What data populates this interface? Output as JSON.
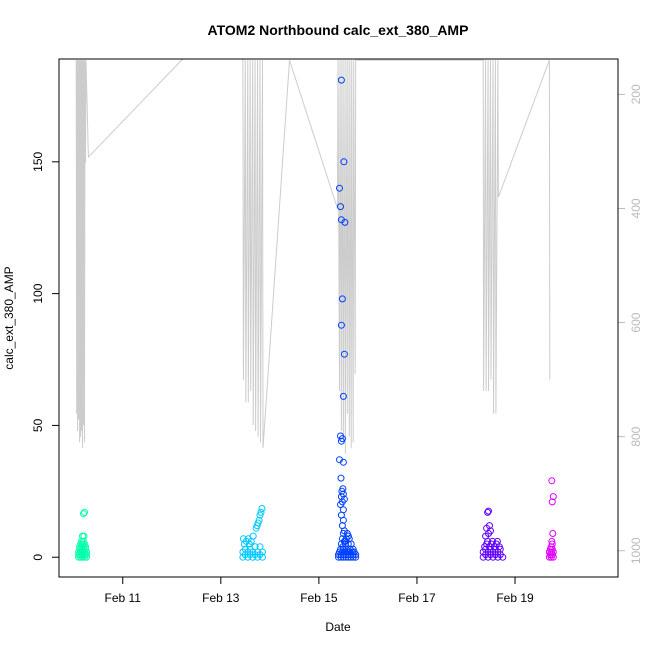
{
  "chart_data": {
    "type": "scatter",
    "title": "ATOM2 Northbound calc_ext_380_AMP",
    "xlabel": "Date",
    "ylabel": "calc_ext_380_AMP",
    "x_tick_labels": [
      "Feb 11",
      "Feb 13",
      "Feb 15",
      "Feb 17",
      "Feb 19"
    ],
    "x_tick_days": [
      11,
      13,
      15,
      17,
      19
    ],
    "xlim_days": [
      9.7,
      21.1
    ],
    "ylim": [
      -7.5,
      189
    ],
    "y_ticks": [
      0,
      50,
      100,
      150
    ],
    "y2_ticks": [
      200,
      400,
      600,
      800,
      1000
    ],
    "y2_lim": [
      1046,
      138
    ],
    "y2_reversed": true,
    "grid": false,
    "point_style": "open-circle",
    "scatter_series": [
      {
        "color": "#00ffaa",
        "x_days": [
          10.1,
          10.14,
          10.18,
          10.22,
          10.26,
          10.1,
          10.14,
          10.18,
          10.22,
          10.26,
          10.1,
          10.14,
          10.18,
          10.22,
          10.26,
          10.12,
          10.16,
          10.2,
          10.24,
          10.12,
          10.16,
          10.2,
          10.24,
          10.14,
          10.18,
          10.22,
          10.16,
          10.2,
          10.18,
          10.21,
          10.2,
          10.22
        ],
        "y": [
          0,
          0,
          0,
          0,
          0,
          1,
          1,
          1,
          1,
          1,
          2,
          2,
          2,
          2,
          2,
          3,
          3,
          3,
          3,
          4,
          4,
          4,
          4,
          5,
          5,
          5,
          6,
          6,
          8,
          8,
          16.5,
          17
        ]
      },
      {
        "color": "#00c8ff",
        "x_days": [
          13.45,
          13.55,
          13.65,
          13.75,
          13.85,
          13.5,
          13.6,
          13.7,
          13.8,
          13.45,
          13.55,
          13.65,
          13.75,
          13.85,
          13.5,
          13.6,
          13.7,
          13.8,
          13.48,
          13.58,
          13.52,
          13.62,
          13.46,
          13.56,
          13.66,
          13.72,
          13.74,
          13.76,
          13.78,
          13.8,
          13.82,
          13.84
        ],
        "y": [
          0,
          0,
          0,
          0,
          0,
          1,
          1,
          1,
          1,
          2,
          2,
          2,
          2,
          2,
          3,
          3,
          4,
          4,
          5,
          5,
          6,
          6,
          7,
          7,
          8,
          11,
          12,
          13,
          14,
          16,
          17,
          18.5
        ]
      },
      {
        "color": "#0040ff",
        "x_days": [
          15.4,
          15.45,
          15.5,
          15.55,
          15.6,
          15.65,
          15.7,
          15.75,
          15.4,
          15.45,
          15.5,
          15.55,
          15.6,
          15.65,
          15.7,
          15.75,
          15.42,
          15.48,
          15.52,
          15.58,
          15.62,
          15.68,
          15.72,
          15.44,
          15.5,
          15.56,
          15.64,
          15.7,
          15.46,
          15.54,
          15.6,
          15.66,
          15.48,
          15.56,
          15.62,
          15.5,
          15.58,
          15.52,
          15.6,
          15.54,
          15.48,
          15.5,
          15.46,
          15.5,
          15.44,
          15.48,
          15.52,
          15.46,
          15.5,
          15.47,
          15.49,
          15.45,
          15.5,
          15.42,
          15.46,
          15.48,
          15.44,
          15.5,
          15.52,
          15.46,
          15.48,
          15.53,
          15.46,
          15.44,
          15.42,
          15.51,
          15.46,
          15.49,
          15.52
        ],
        "y": [
          0,
          0,
          0,
          0,
          0,
          0,
          0,
          0,
          1,
          1,
          1,
          1,
          1,
          1,
          1,
          1,
          2,
          2,
          2,
          2,
          2,
          2,
          2,
          3,
          3,
          3,
          3,
          3,
          5,
          5,
          5,
          5,
          7,
          7,
          7,
          9,
          9,
          10,
          8,
          6,
          12,
          14,
          16,
          18,
          20,
          21,
          22,
          23,
          24,
          25,
          26,
          30,
          36,
          37,
          44,
          45,
          46,
          61,
          77,
          88,
          98,
          127,
          128,
          133,
          140,
          150,
          181,
          4,
          6
        ]
      },
      {
        "color": "#6000ff",
        "x_days": [
          18.35,
          18.45,
          18.55,
          18.65,
          18.75,
          18.4,
          18.5,
          18.6,
          18.7,
          18.35,
          18.45,
          18.55,
          18.65,
          18.4,
          18.5,
          18.6,
          18.7,
          18.38,
          18.48,
          18.58,
          18.68,
          18.42,
          18.52,
          18.62,
          18.44,
          18.54,
          18.64,
          18.4,
          18.46,
          18.5,
          18.42,
          18.48,
          18.44,
          18.46
        ],
        "y": [
          0,
          0,
          0,
          0,
          0,
          1,
          1,
          1,
          1,
          2,
          2,
          2,
          2,
          3,
          3,
          3,
          3,
          4,
          4,
          4,
          4,
          5,
          5,
          5,
          6,
          6,
          6,
          8,
          9,
          10,
          11,
          12,
          17,
          17.5
        ]
      },
      {
        "color": "#e000ff",
        "x_days": [
          19.7,
          19.74,
          19.78,
          19.72,
          19.76,
          19.7,
          19.74,
          19.78,
          19.72,
          19.76,
          19.74,
          19.76,
          19.75,
          19.77,
          19.76,
          19.78,
          19.75
        ],
        "y": [
          0,
          0,
          0,
          1,
          1,
          2,
          2,
          2,
          3,
          3,
          4,
          5,
          6,
          9,
          21,
          23,
          29
        ]
      }
    ],
    "secondary_line": {
      "color": "#cccccc",
      "axis": "right-reversed",
      "note_visible": false,
      "x_days": [
        10.05,
        10.06,
        10.07,
        10.08,
        10.09,
        10.1,
        10.11,
        10.12,
        10.13,
        10.14,
        10.15,
        10.16,
        10.17,
        10.18,
        10.19,
        10.2,
        10.21,
        10.22,
        10.23,
        10.24,
        10.25,
        10.3,
        12.2,
        12.25,
        13.45,
        13.46,
        13.5,
        13.51,
        13.55,
        13.56,
        13.6,
        13.61,
        13.65,
        13.66,
        13.7,
        13.71,
        13.75,
        13.76,
        13.8,
        13.81,
        13.85,
        13.86,
        14.4,
        15.38,
        15.39,
        15.42,
        15.43,
        15.46,
        15.47,
        15.5,
        15.51,
        15.54,
        15.55,
        15.58,
        15.59,
        15.62,
        15.63,
        15.66,
        15.67,
        15.7,
        15.71,
        15.74,
        15.75,
        18.35,
        18.36,
        18.4,
        18.41,
        18.45,
        18.46,
        18.5,
        18.51,
        18.55,
        18.56,
        18.6,
        18.61,
        18.65,
        18.66,
        19.7,
        19.71
      ],
      "y": [
        140,
        760,
        140,
        790,
        140,
        770,
        140,
        810,
        140,
        800,
        140,
        790,
        140,
        820,
        140,
        780,
        140,
        810,
        140,
        320,
        140,
        310,
        140,
        138,
        138,
        700,
        140,
        740,
        140,
        740,
        140,
        720,
        140,
        780,
        140,
        790,
        140,
        800,
        140,
        810,
        140,
        820,
        140,
        400,
        140,
        720,
        140,
        790,
        140,
        810,
        140,
        830,
        140,
        760,
        140,
        800,
        140,
        820,
        140,
        810,
        140,
        690,
        140,
        140,
        720,
        140,
        720,
        140,
        720,
        140,
        700,
        140,
        760,
        140,
        760,
        140,
        380,
        140,
        700
      ]
    }
  }
}
